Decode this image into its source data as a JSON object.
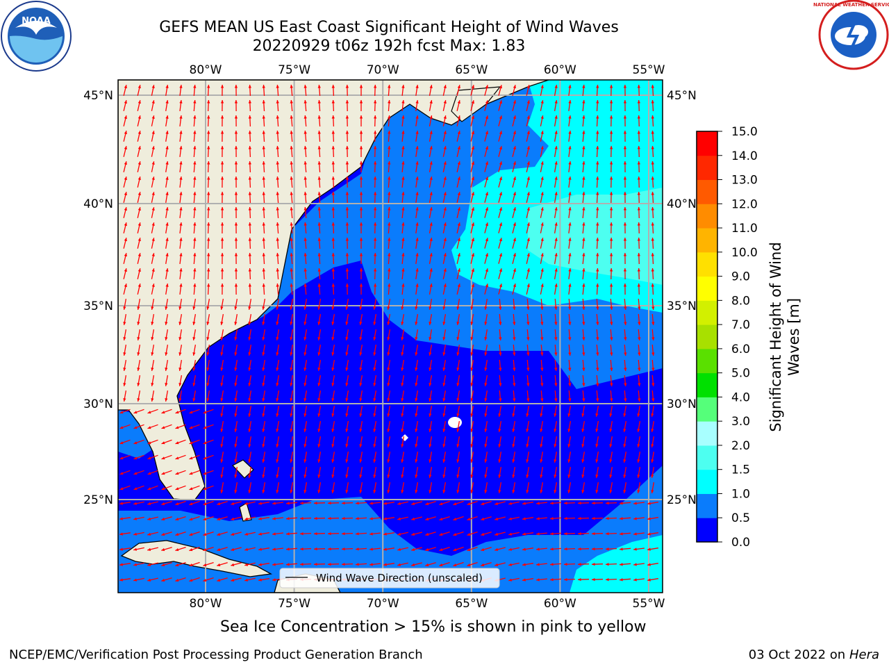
{
  "title": {
    "line1": "GEFS MEAN US East Coast Significant Height of Wind Waves",
    "line2": "20220929 t06z 192h fcst   Max: 1.83"
  },
  "footnote": "Sea Ice Concentration > 15% is shown in pink to yellow",
  "credit_left": "NCEP/EMC/Verification Post Processing Product Generation Branch",
  "credit_right_date": "03 Oct 2022 on ",
  "credit_right_host": "Hera",
  "logos": {
    "noaa_text": "NOAA",
    "nws_text": "NATIONAL WEATHER SERVICE"
  },
  "map": {
    "lon_labels": [
      "80°W",
      "75°W",
      "70°W",
      "65°W",
      "60°W",
      "55°W"
    ],
    "lat_labels": [
      "45°N",
      "40°N",
      "35°N",
      "30°N",
      "25°N"
    ],
    "legend_label": "Wind Wave Direction (unscaled)"
  },
  "colorbar": {
    "label_line1": "Significant Height of Wind",
    "label_line2": "Waves [m]",
    "ticks": [
      "0.0",
      "0.5",
      "1.0",
      "1.5",
      "2.0",
      "3.0",
      "4.0",
      "5.0",
      "6.0",
      "7.0",
      "8.0",
      "9.0",
      "10.0",
      "11.0",
      "12.0",
      "13.0",
      "14.0",
      "15.0"
    ],
    "colors": [
      "#0000ff",
      "#0a7cfc",
      "#00ffff",
      "#4dfff0",
      "#a8ffff",
      "#55ff7a",
      "#00e000",
      "#5ae000",
      "#a8e000",
      "#d2f000",
      "#ffff00",
      "#ffe000",
      "#ffb400",
      "#ff8c00",
      "#ff5a00",
      "#ff2800",
      "#ff0000"
    ]
  },
  "colors": {
    "land": "#efeddc",
    "ocean_low": "#0000ff",
    "ocean_mid": "#0a7cfc",
    "ocean_high": "#00ffff",
    "ocean_top": "#4dfff0",
    "arrows": "#ff0000",
    "grid": "#b0b0b0"
  }
}
